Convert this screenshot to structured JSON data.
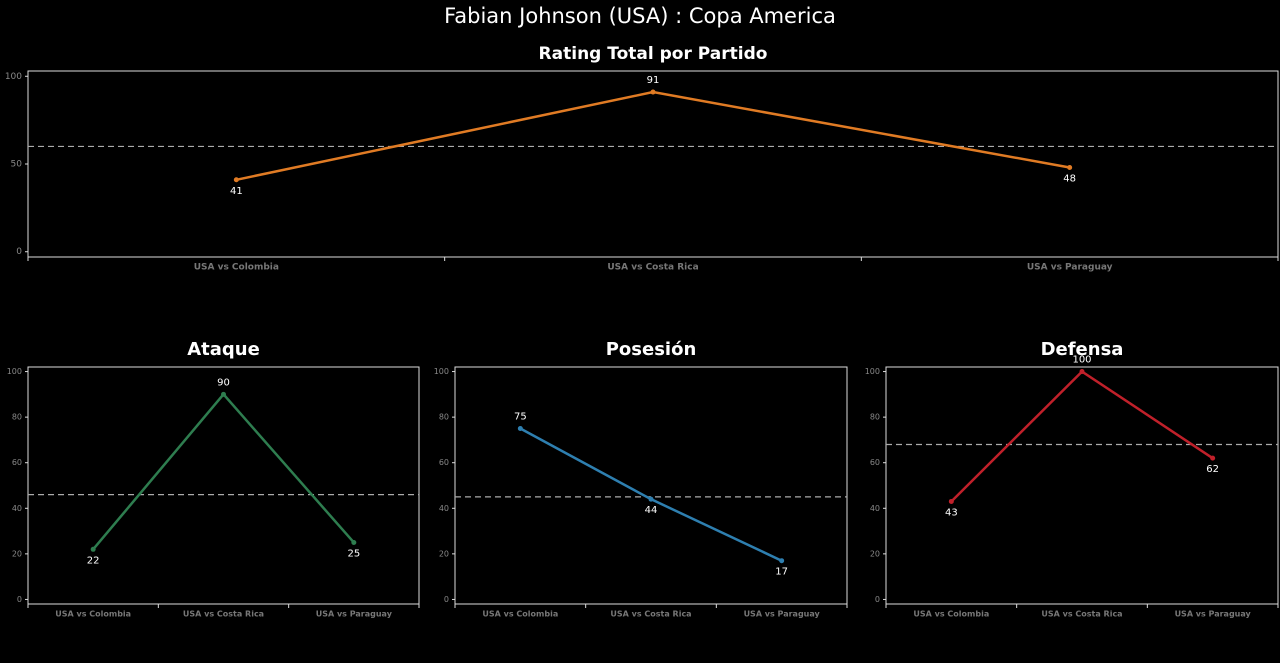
{
  "title": "Fabian Johnson (USA) :  Copa  America",
  "chart_data": [
    {
      "type": "line",
      "title": "Rating Total por Partido",
      "categories": [
        "USA vs Colombia",
        "USA vs Costa Rica",
        "USA vs Paraguay"
      ],
      "values": [
        41,
        91,
        48
      ],
      "color": "#e07b24",
      "ylim": [
        -3,
        103
      ],
      "yticks": [
        0,
        50,
        100
      ],
      "mean_line": 60
    },
    {
      "type": "line",
      "title": "Ataque",
      "categories": [
        "USA vs Colombia",
        "USA vs Costa Rica",
        "USA vs Paraguay"
      ],
      "values": [
        22,
        90,
        25
      ],
      "color": "#2e7d4f",
      "ylim": [
        -2,
        102
      ],
      "yticks": [
        0,
        20,
        40,
        60,
        80,
        100
      ],
      "mean_line": 46
    },
    {
      "type": "line",
      "title": "Posesión",
      "categories": [
        "USA vs Colombia",
        "USA vs Costa Rica",
        "USA vs Paraguay"
      ],
      "values": [
        75,
        44,
        17
      ],
      "color": "#2e7fb0",
      "ylim": [
        -2,
        102
      ],
      "yticks": [
        0,
        20,
        40,
        60,
        80,
        100
      ],
      "mean_line": 45
    },
    {
      "type": "line",
      "title": "Defensa",
      "categories": [
        "USA vs Colombia",
        "USA vs Costa Rica",
        "USA vs Paraguay"
      ],
      "values": [
        43,
        100,
        62
      ],
      "color": "#c0202a",
      "ylim": [
        -2,
        102
      ],
      "yticks": [
        0,
        20,
        40,
        60,
        80,
        100
      ],
      "mean_line": 68
    }
  ]
}
